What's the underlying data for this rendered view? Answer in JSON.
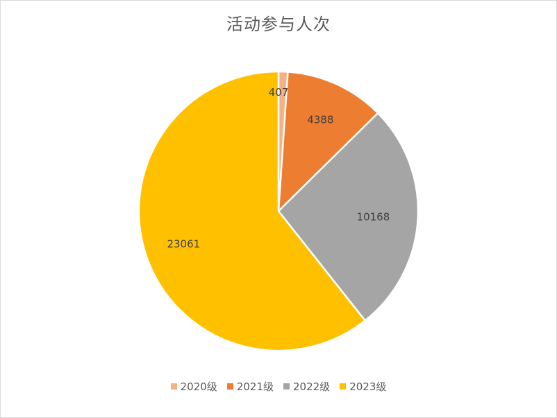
{
  "chart_data": {
    "type": "pie",
    "title": "活动参与人次",
    "categories": [
      "2020级",
      "2021级",
      "2022级",
      "2023级"
    ],
    "values": [
      407,
      4388,
      10168,
      23061
    ],
    "colors": [
      "#f4b183",
      "#ed7d31",
      "#a5a5a5",
      "#ffc000"
    ],
    "legend": "bottom",
    "data_labels": true
  }
}
